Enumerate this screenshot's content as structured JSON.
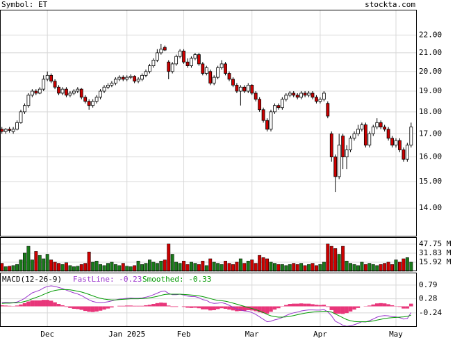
{
  "header": {
    "symbol": "Symbol: ET",
    "site": "stockta.com"
  },
  "chart_data": [
    {
      "type": "candlestick",
      "log_scale": true,
      "grid": true,
      "up_color": "#ffffff",
      "down_color": "#cc0000",
      "categories": [
        null,
        null,
        null,
        null,
        null,
        null,
        null,
        null,
        null,
        null,
        null,
        null,
        "Dec",
        null,
        null,
        null,
        null,
        null,
        null,
        null,
        null,
        null,
        null,
        null,
        null,
        null,
        null,
        null,
        null,
        null,
        null,
        null,
        null,
        "Jan 2025",
        null,
        null,
        null,
        null,
        null,
        null,
        null,
        null,
        null,
        null,
        null,
        null,
        null,
        null,
        "Feb",
        null,
        null,
        null,
        null,
        null,
        null,
        null,
        null,
        null,
        null,
        null,
        null,
        null,
        null,
        null,
        null,
        null,
        "Mar",
        null,
        null,
        null,
        null,
        null,
        null,
        null,
        null,
        null,
        null,
        null,
        null,
        null,
        null,
        null,
        null,
        null,
        "Apr",
        null,
        null,
        null,
        null,
        null,
        null,
        null,
        null,
        null,
        null,
        null,
        null,
        null,
        null,
        null,
        null,
        null,
        null,
        null,
        "May",
        null,
        null,
        null,
        null,
        null
      ],
      "values": [
        [
          17.2,
          17.3,
          17.0,
          17.1
        ],
        [
          17.1,
          17.25,
          17.0,
          17.2
        ],
        [
          17.2,
          17.3,
          17.05,
          17.15
        ],
        [
          17.1,
          17.3,
          17.0,
          17.2
        ],
        [
          17.2,
          17.6,
          17.15,
          17.5
        ],
        [
          17.5,
          18.1,
          17.45,
          18.0
        ],
        [
          18.0,
          18.4,
          17.9,
          18.3
        ],
        [
          18.3,
          18.9,
          18.2,
          18.8
        ],
        [
          18.8,
          19.1,
          18.7,
          19.0
        ],
        [
          19.0,
          19.1,
          18.8,
          18.9
        ],
        [
          18.9,
          19.2,
          18.85,
          19.1
        ],
        [
          19.1,
          19.8,
          19.0,
          19.6
        ],
        [
          19.6,
          20.0,
          19.5,
          19.8
        ],
        [
          19.8,
          19.9,
          19.4,
          19.5
        ],
        [
          19.5,
          19.6,
          19.1,
          19.2
        ],
        [
          19.2,
          19.3,
          18.8,
          18.9
        ],
        [
          18.9,
          19.2,
          18.8,
          19.1
        ],
        [
          19.1,
          19.2,
          18.7,
          18.8
        ],
        [
          18.8,
          19.0,
          18.7,
          18.9
        ],
        [
          18.9,
          19.1,
          18.8,
          19.0
        ],
        [
          19.0,
          19.2,
          18.9,
          19.1
        ],
        [
          19.1,
          19.15,
          18.6,
          18.7
        ],
        [
          18.7,
          18.8,
          18.4,
          18.5
        ],
        [
          18.5,
          18.6,
          18.1,
          18.3
        ],
        [
          18.3,
          18.6,
          18.2,
          18.5
        ],
        [
          18.5,
          18.8,
          18.4,
          18.7
        ],
        [
          18.7,
          19.1,
          18.6,
          19.0
        ],
        [
          19.0,
          19.3,
          18.9,
          19.2
        ],
        [
          19.2,
          19.4,
          19.1,
          19.3
        ],
        [
          19.3,
          19.5,
          19.2,
          19.4
        ],
        [
          19.4,
          19.7,
          19.3,
          19.6
        ],
        [
          19.6,
          19.8,
          19.5,
          19.7
        ],
        [
          19.7,
          19.8,
          19.5,
          19.6
        ],
        [
          19.6,
          19.8,
          19.5,
          19.7
        ],
        [
          19.7,
          19.85,
          19.6,
          19.75
        ],
        [
          19.75,
          19.8,
          19.4,
          19.5
        ],
        [
          19.5,
          19.7,
          19.4,
          19.6
        ],
        [
          19.6,
          19.9,
          19.5,
          19.8
        ],
        [
          19.8,
          20.1,
          19.7,
          20.0
        ],
        [
          20.0,
          20.4,
          19.9,
          20.3
        ],
        [
          20.3,
          20.7,
          20.2,
          20.6
        ],
        [
          20.6,
          21.2,
          20.5,
          21.0
        ],
        [
          21.0,
          21.5,
          20.9,
          21.2
        ],
        [
          21.3,
          21.4,
          21.1,
          21.15
        ],
        [
          20.5,
          20.6,
          19.6,
          20.0
        ],
        [
          20.0,
          20.5,
          19.9,
          20.4
        ],
        [
          20.4,
          20.9,
          20.3,
          20.8
        ],
        [
          20.8,
          21.2,
          20.7,
          21.1
        ],
        [
          21.1,
          21.2,
          20.4,
          20.5
        ],
        [
          20.5,
          20.7,
          20.2,
          20.3
        ],
        [
          20.3,
          20.8,
          20.2,
          20.7
        ],
        [
          20.7,
          21.0,
          20.6,
          20.9
        ],
        [
          20.9,
          21.0,
          20.3,
          20.4
        ],
        [
          20.4,
          20.5,
          19.8,
          19.9
        ],
        [
          19.9,
          20.3,
          19.8,
          20.2
        ],
        [
          20.0,
          20.1,
          19.3,
          19.4
        ],
        [
          19.4,
          19.8,
          19.3,
          19.7
        ],
        [
          19.7,
          20.3,
          19.6,
          20.2
        ],
        [
          20.2,
          20.6,
          20.1,
          20.4
        ],
        [
          20.4,
          20.5,
          19.8,
          19.9
        ],
        [
          19.9,
          20.0,
          19.5,
          19.6
        ],
        [
          19.6,
          19.7,
          19.2,
          19.3
        ],
        [
          19.3,
          19.4,
          18.9,
          19.0
        ],
        [
          19.0,
          19.3,
          18.3,
          19.2
        ],
        [
          19.2,
          19.3,
          18.9,
          19.0
        ],
        [
          19.0,
          19.4,
          18.9,
          19.3
        ],
        [
          19.3,
          19.35,
          18.8,
          18.9
        ],
        [
          18.9,
          19.0,
          18.5,
          18.6
        ],
        [
          18.6,
          18.7,
          18.0,
          18.1
        ],
        [
          18.1,
          18.2,
          17.5,
          17.6
        ],
        [
          17.6,
          17.7,
          17.1,
          17.2
        ],
        [
          17.2,
          18.1,
          17.1,
          18.0
        ],
        [
          18.0,
          18.4,
          17.9,
          18.3
        ],
        [
          18.3,
          18.4,
          18.1,
          18.2
        ],
        [
          18.2,
          18.7,
          18.1,
          18.6
        ],
        [
          18.6,
          18.9,
          18.5,
          18.8
        ],
        [
          18.8,
          19.0,
          18.7,
          18.9
        ],
        [
          18.9,
          19.0,
          18.7,
          18.8
        ],
        [
          18.8,
          18.9,
          18.6,
          18.7
        ],
        [
          18.7,
          19.0,
          18.6,
          18.9
        ],
        [
          18.9,
          19.0,
          18.7,
          18.8
        ],
        [
          18.8,
          19.0,
          18.7,
          18.9
        ],
        [
          18.9,
          19.0,
          18.6,
          18.7
        ],
        [
          18.7,
          18.8,
          18.4,
          18.5
        ],
        [
          18.5,
          18.7,
          18.4,
          18.6
        ],
        [
          18.6,
          19.0,
          18.5,
          18.9
        ],
        [
          18.4,
          18.5,
          17.7,
          17.8
        ],
        [
          17.0,
          17.1,
          15.8,
          16.0
        ],
        [
          16.0,
          16.1,
          14.6,
          15.2
        ],
        [
          15.2,
          17.0,
          15.1,
          16.5
        ],
        [
          16.9,
          17.0,
          15.5,
          16.0
        ],
        [
          16.0,
          16.5,
          15.5,
          16.3
        ],
        [
          16.3,
          16.9,
          16.2,
          16.8
        ],
        [
          16.8,
          17.1,
          16.7,
          17.0
        ],
        [
          17.0,
          17.4,
          16.9,
          17.2
        ],
        [
          17.2,
          17.5,
          17.1,
          17.4
        ],
        [
          17.4,
          17.5,
          16.4,
          16.5
        ],
        [
          16.5,
          17.1,
          16.4,
          17.0
        ],
        [
          17.0,
          17.4,
          16.9,
          17.3
        ],
        [
          17.3,
          17.7,
          17.2,
          17.5
        ],
        [
          17.5,
          17.6,
          17.2,
          17.3
        ],
        [
          17.3,
          17.4,
          17.1,
          17.2
        ],
        [
          17.2,
          17.3,
          16.7,
          16.8
        ],
        [
          16.8,
          16.9,
          16.4,
          16.5
        ],
        [
          16.5,
          16.8,
          16.4,
          16.7
        ],
        [
          16.7,
          16.8,
          16.2,
          16.3
        ],
        [
          16.3,
          16.4,
          15.8,
          15.9
        ],
        [
          15.9,
          16.6,
          15.8,
          16.5
        ],
        [
          16.5,
          17.5,
          16.4,
          17.3
        ]
      ],
      "ylim": [
        13.0,
        23.5
      ],
      "yticks": [
        {
          "value": 22,
          "label": "22.00"
        },
        {
          "value": 21,
          "label": "21.00"
        },
        {
          "value": 20,
          "label": "20.00"
        },
        {
          "value": 19,
          "label": "19.00"
        },
        {
          "value": 18,
          "label": "18.00"
        },
        {
          "value": 17,
          "label": "17.00"
        },
        {
          "value": 16,
          "label": "16.00"
        },
        {
          "value": 15,
          "label": "15.00"
        },
        {
          "value": 14,
          "label": "14.00"
        }
      ]
    },
    {
      "type": "volume",
      "up_color": "#1a7a1a",
      "down_color": "#cc0000",
      "grid": true,
      "values": [
        14,
        8,
        9,
        10,
        12,
        20,
        32,
        44,
        20,
        35,
        28,
        22,
        30,
        20,
        16,
        14,
        12,
        15,
        10,
        8,
        9,
        12,
        14,
        34,
        16,
        18,
        12,
        10,
        14,
        16,
        12,
        10,
        14,
        9,
        8,
        10,
        18,
        12,
        14,
        20,
        16,
        14,
        18,
        20,
        48,
        30,
        16,
        14,
        18,
        12,
        16,
        14,
        12,
        18,
        10,
        22,
        16,
        14,
        12,
        18,
        14,
        12,
        16,
        22,
        14,
        18,
        20,
        14,
        28,
        24,
        22,
        16,
        14,
        12,
        12,
        10,
        12,
        14,
        12,
        14,
        10,
        12,
        14,
        10,
        12,
        16,
        48,
        44,
        40,
        30,
        44,
        18,
        14,
        12,
        10,
        16,
        12,
        14,
        12,
        10,
        12,
        14,
        16,
        12,
        20,
        16,
        22,
        24,
        16
      ],
      "ylim": [
        0,
        60
      ],
      "yticks": [
        {
          "value": 47.75,
          "label": "47.75 M"
        },
        {
          "value": 31.83,
          "label": "31.83 M"
        },
        {
          "value": 15.92,
          "label": "15.92 M"
        }
      ]
    },
    {
      "type": "macd",
      "title": "MACD(12-26-9)",
      "grid": true,
      "hist_color": "#e8367a",
      "series": [
        {
          "name": "FastLine: -0.23",
          "color": "#9933cc",
          "values": [
            0.15,
            0.15,
            0.14,
            0.14,
            0.16,
            0.22,
            0.3,
            0.4,
            0.5,
            0.55,
            0.6,
            0.68,
            0.74,
            0.76,
            0.74,
            0.7,
            0.66,
            0.6,
            0.55,
            0.5,
            0.46,
            0.4,
            0.32,
            0.24,
            0.18,
            0.15,
            0.14,
            0.15,
            0.17,
            0.2,
            0.24,
            0.27,
            0.28,
            0.3,
            0.31,
            0.3,
            0.3,
            0.31,
            0.34,
            0.38,
            0.43,
            0.49,
            0.55,
            0.57,
            0.48,
            0.43,
            0.43,
            0.45,
            0.42,
            0.38,
            0.36,
            0.36,
            0.32,
            0.25,
            0.22,
            0.14,
            0.11,
            0.12,
            0.14,
            0.1,
            0.04,
            -0.03,
            -0.1,
            -0.13,
            -0.17,
            -0.18,
            -0.23,
            -0.3,
            -0.39,
            -0.48,
            -0.57,
            -0.55,
            -0.5,
            -0.47,
            -0.41,
            -0.34,
            -0.28,
            -0.24,
            -0.21,
            -0.17,
            -0.15,
            -0.13,
            -0.13,
            -0.14,
            -0.14,
            -0.12,
            -0.2,
            -0.35,
            -0.55,
            -0.62,
            -0.7,
            -0.74,
            -0.72,
            -0.68,
            -0.63,
            -0.57,
            -0.58,
            -0.53,
            -0.47,
            -0.4,
            -0.36,
            -0.34,
            -0.35,
            -0.38,
            -0.39,
            -0.42,
            -0.47,
            -0.45,
            -0.23
          ]
        },
        {
          "name": "Smoothed: -0.33",
          "color": "#009900",
          "values": [
            0.11,
            0.12,
            0.12,
            0.13,
            0.13,
            0.15,
            0.18,
            0.22,
            0.28,
            0.33,
            0.38,
            0.44,
            0.5,
            0.55,
            0.59,
            0.61,
            0.62,
            0.62,
            0.61,
            0.59,
            0.56,
            0.53,
            0.49,
            0.44,
            0.39,
            0.34,
            0.3,
            0.27,
            0.25,
            0.24,
            0.24,
            0.25,
            0.26,
            0.27,
            0.28,
            0.28,
            0.28,
            0.29,
            0.3,
            0.32,
            0.34,
            0.37,
            0.41,
            0.44,
            0.45,
            0.45,
            0.45,
            0.45,
            0.44,
            0.43,
            0.42,
            0.41,
            0.39,
            0.36,
            0.33,
            0.29,
            0.25,
            0.22,
            0.21,
            0.19,
            0.16,
            0.12,
            0.08,
            0.04,
            0.0,
            -0.04,
            -0.08,
            -0.12,
            -0.17,
            -0.23,
            -0.3,
            -0.35,
            -0.38,
            -0.4,
            -0.4,
            -0.39,
            -0.37,
            -0.34,
            -0.31,
            -0.28,
            -0.25,
            -0.23,
            -0.21,
            -0.2,
            -0.19,
            -0.18,
            -0.18,
            -0.21,
            -0.28,
            -0.35,
            -0.42,
            -0.49,
            -0.53,
            -0.56,
            -0.57,
            -0.57,
            -0.57,
            -0.56,
            -0.54,
            -0.51,
            -0.48,
            -0.45,
            -0.43,
            -0.42,
            -0.41,
            -0.4,
            -0.39,
            -0.37,
            -0.33
          ]
        }
      ],
      "histogram": [
        0.04,
        0.03,
        0.02,
        0.01,
        0.03,
        0.07,
        0.12,
        0.18,
        0.22,
        0.22,
        0.22,
        0.24,
        0.24,
        0.21,
        0.15,
        0.09,
        0.04,
        -0.02,
        -0.06,
        -0.09,
        -0.1,
        -0.13,
        -0.17,
        -0.2,
        -0.21,
        -0.19,
        -0.16,
        -0.12,
        -0.08,
        -0.04,
        0.0,
        0.02,
        0.02,
        0.03,
        0.03,
        0.02,
        0.02,
        0.02,
        0.04,
        0.06,
        0.09,
        0.12,
        0.14,
        0.13,
        0.03,
        -0.02,
        -0.02,
        0.0,
        -0.02,
        -0.05,
        -0.06,
        -0.05,
        -0.07,
        -0.11,
        -0.11,
        -0.15,
        -0.14,
        -0.1,
        -0.07,
        -0.09,
        -0.12,
        -0.15,
        -0.18,
        -0.17,
        -0.17,
        -0.14,
        -0.15,
        -0.18,
        -0.22,
        -0.25,
        -0.27,
        -0.2,
        -0.12,
        -0.07,
        -0.01,
        0.05,
        0.09,
        0.1,
        0.1,
        0.11,
        0.1,
        0.1,
        0.08,
        0.06,
        0.05,
        0.06,
        -0.02,
        -0.14,
        -0.27,
        -0.27,
        -0.28,
        -0.25,
        -0.19,
        -0.12,
        -0.06,
        0.0,
        -0.01,
        0.03,
        0.07,
        0.11,
        0.12,
        0.11,
        0.08,
        0.04,
        0.01,
        -0.02,
        -0.08,
        -0.08,
        0.1
      ],
      "ylim": [
        -0.76,
        1.25
      ],
      "yticks": [
        0.79,
        0.28,
        -0.24
      ]
    }
  ]
}
